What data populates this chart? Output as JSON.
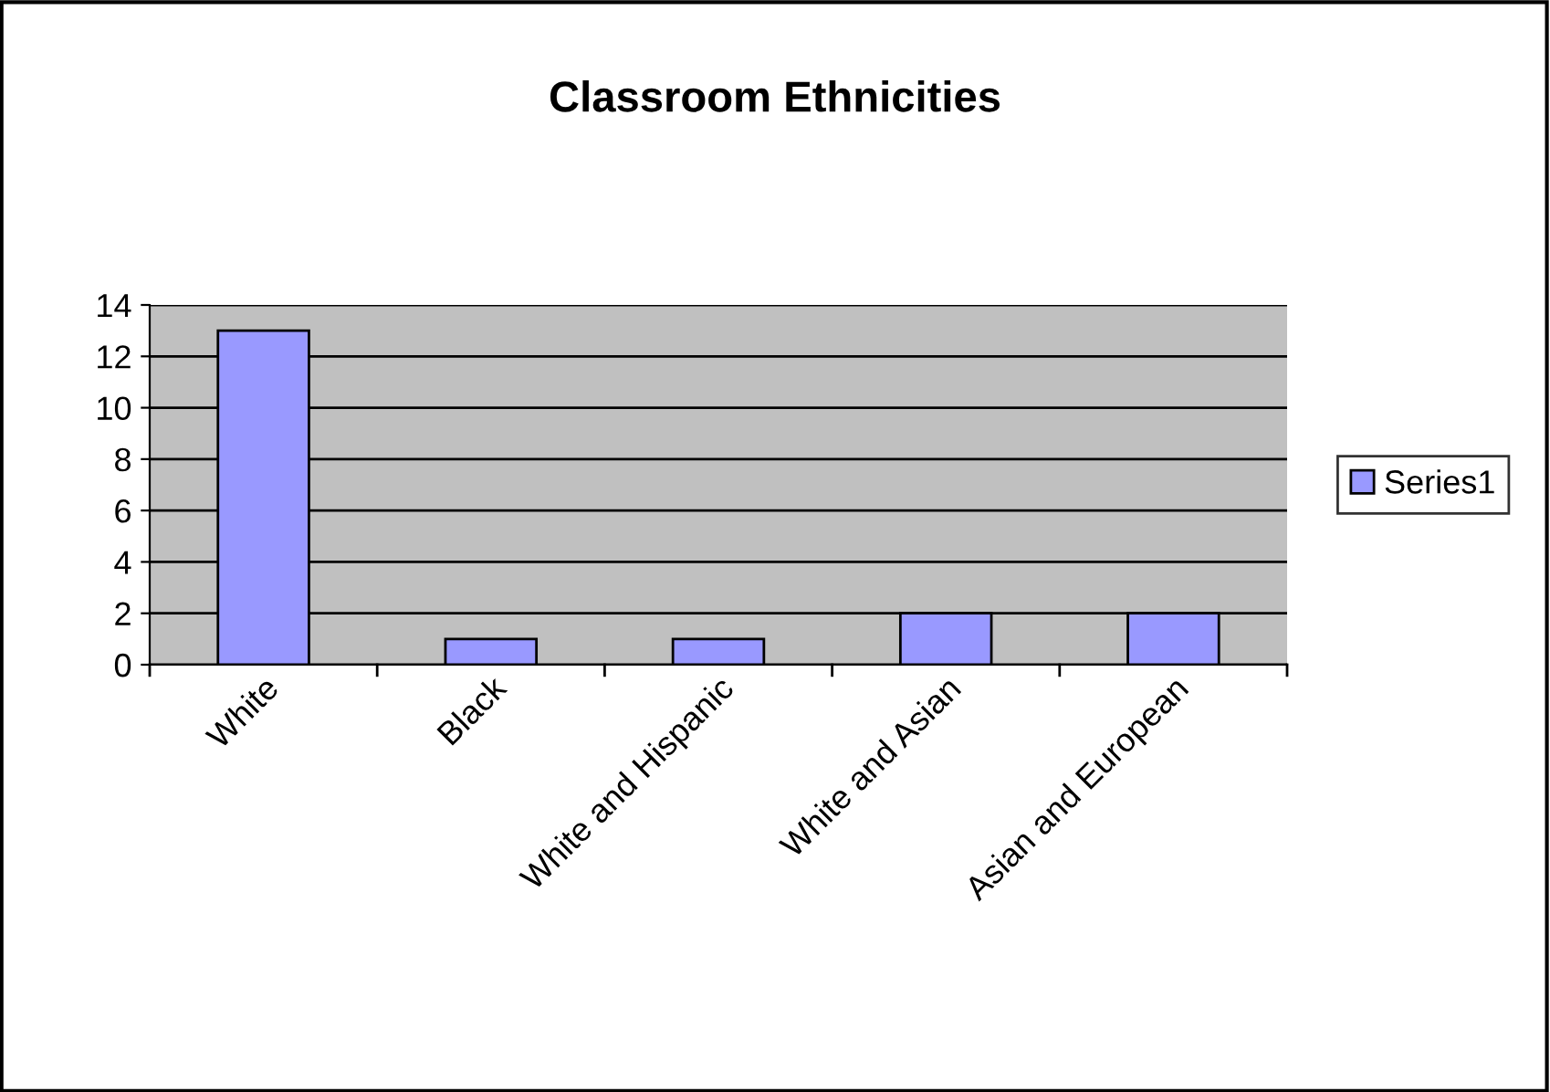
{
  "chart_data": {
    "type": "bar",
    "title": "Classroom Ethnicities",
    "categories": [
      "White",
      "Black",
      "White and Hispanic",
      "White and Asian",
      "Asian and European"
    ],
    "series": [
      {
        "name": "Series1",
        "color": "#9999ff",
        "values": [
          13,
          1,
          1,
          2,
          2
        ]
      }
    ],
    "ylim": [
      0,
      14
    ],
    "yticks": [
      0,
      2,
      4,
      6,
      8,
      10,
      12,
      14
    ],
    "grid": "y",
    "legend": "right"
  }
}
